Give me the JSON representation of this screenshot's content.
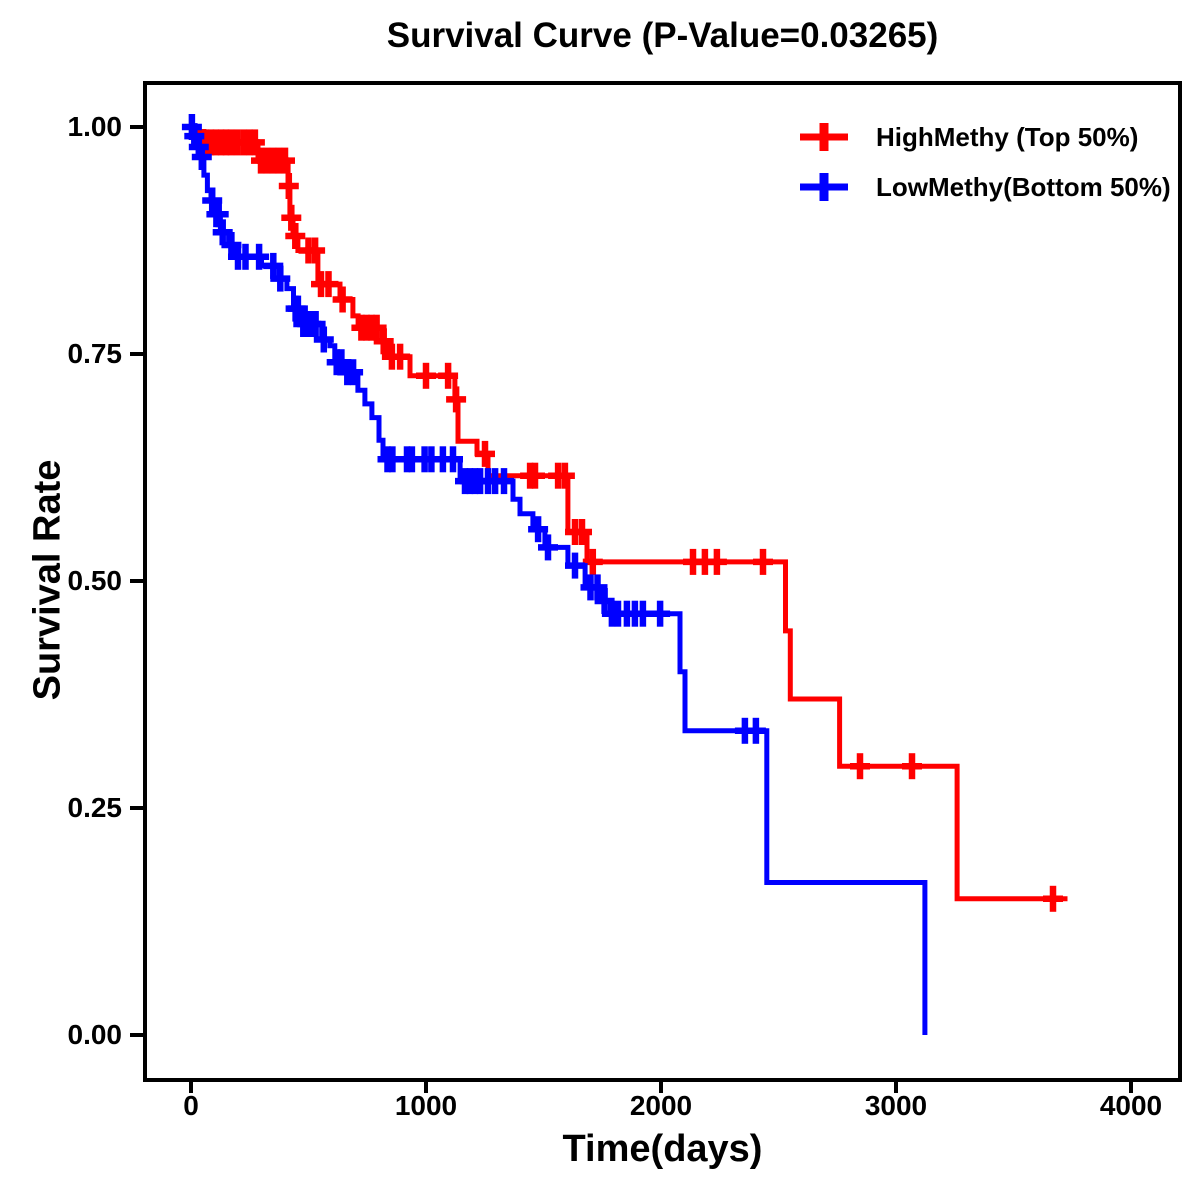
{
  "title": "Survival Curve (P-Value=0.03265)",
  "axes": {
    "x_label": "Time(days)",
    "y_label": "Survival Rate",
    "x_tick_labels": [
      "0",
      "1000",
      "2000",
      "3000",
      "4000"
    ],
    "y_tick_labels": [
      "1.00",
      "0.75",
      "0.50",
      "0.25",
      "0.00"
    ]
  },
  "legend": {
    "position": "top-right",
    "items": [
      {
        "label": "HighMethy (Top 50%)",
        "color": "#ff0000",
        "marker": "plus"
      },
      {
        "label": "LowMethy(Bottom 50%)",
        "color": "#0000ff",
        "marker": "plus"
      }
    ]
  },
  "chart_data": {
    "type": "line",
    "subtype": "kaplan-meier-step-curves-with-censor-marks",
    "title": "Survival Curve (P-Value=0.03265)",
    "p_value": 0.03265,
    "xlabel": "Time(days)",
    "ylabel": "Survival Rate",
    "xlim": [
      -200,
      4200
    ],
    "ylim": [
      -0.05,
      1.05
    ],
    "x_ticks": [
      0,
      1000,
      2000,
      3000,
      4000
    ],
    "y_ticks": [
      1.0,
      0.75,
      0.5,
      0.25,
      0.0
    ],
    "grid": false,
    "frame": true,
    "series": [
      {
        "name": "HighMethy (Top 50%)",
        "color": "#ff0000",
        "end_time": 3730,
        "steps": [
          [
            0,
            1.0
          ],
          [
            25,
            0.995
          ],
          [
            55,
            0.983
          ],
          [
            285,
            0.963
          ],
          [
            413,
            0.935
          ],
          [
            421,
            0.9
          ],
          [
            434,
            0.88
          ],
          [
            455,
            0.864
          ],
          [
            540,
            0.827
          ],
          [
            634,
            0.81
          ],
          [
            689,
            0.792
          ],
          [
            711,
            0.779
          ],
          [
            813,
            0.764
          ],
          [
            838,
            0.747
          ],
          [
            932,
            0.726
          ],
          [
            1123,
            0.7
          ],
          [
            1136,
            0.654
          ],
          [
            1217,
            0.64
          ],
          [
            1264,
            0.616
          ],
          [
            1604,
            0.554
          ],
          [
            1685,
            0.521
          ],
          [
            2530,
            0.445
          ],
          [
            2550,
            0.37
          ],
          [
            2760,
            0.296
          ],
          [
            3260,
            0.15
          ]
        ],
        "censors": [
          [
            64,
            0.983
          ],
          [
            85,
            0.983
          ],
          [
            106,
            0.983
          ],
          [
            128,
            0.983
          ],
          [
            149,
            0.983
          ],
          [
            170,
            0.983
          ],
          [
            196,
            0.983
          ],
          [
            223,
            0.983
          ],
          [
            249,
            0.983
          ],
          [
            272,
            0.983
          ],
          [
            298,
            0.963
          ],
          [
            323,
            0.963
          ],
          [
            349,
            0.963
          ],
          [
            374,
            0.963
          ],
          [
            400,
            0.963
          ],
          [
            416,
            0.935
          ],
          [
            427,
            0.9
          ],
          [
            444,
            0.88
          ],
          [
            500,
            0.864
          ],
          [
            528,
            0.864
          ],
          [
            553,
            0.827
          ],
          [
            585,
            0.827
          ],
          [
            645,
            0.81
          ],
          [
            725,
            0.779
          ],
          [
            747,
            0.779
          ],
          [
            768,
            0.779
          ],
          [
            790,
            0.779
          ],
          [
            820,
            0.764
          ],
          [
            855,
            0.747
          ],
          [
            890,
            0.747
          ],
          [
            1000,
            0.726
          ],
          [
            1094,
            0.726
          ],
          [
            1128,
            0.7
          ],
          [
            1251,
            0.64
          ],
          [
            1443,
            0.616
          ],
          [
            1464,
            0.616
          ],
          [
            1562,
            0.616
          ],
          [
            1591,
            0.616
          ],
          [
            1634,
            0.554
          ],
          [
            1664,
            0.554
          ],
          [
            1710,
            0.521
          ],
          [
            2136,
            0.521
          ],
          [
            2187,
            0.521
          ],
          [
            2238,
            0.521
          ],
          [
            2434,
            0.521
          ],
          [
            2847,
            0.296
          ],
          [
            3068,
            0.296
          ],
          [
            3668,
            0.15
          ]
        ]
      },
      {
        "name": "LowMethy(Bottom 50%)",
        "color": "#0000ff",
        "end_time": 3123,
        "steps": [
          [
            0,
            1.0
          ],
          [
            10,
            0.99
          ],
          [
            30,
            0.978
          ],
          [
            42,
            0.967
          ],
          [
            55,
            0.947
          ],
          [
            70,
            0.93
          ],
          [
            85,
            0.919
          ],
          [
            100,
            0.904
          ],
          [
            125,
            0.884
          ],
          [
            160,
            0.87
          ],
          [
            185,
            0.857
          ],
          [
            300,
            0.847
          ],
          [
            375,
            0.833
          ],
          [
            408,
            0.822
          ],
          [
            436,
            0.8
          ],
          [
            465,
            0.783
          ],
          [
            556,
            0.766
          ],
          [
            591,
            0.759
          ],
          [
            612,
            0.741
          ],
          [
            655,
            0.73
          ],
          [
            710,
            0.71
          ],
          [
            740,
            0.695
          ],
          [
            770,
            0.68
          ],
          [
            800,
            0.655
          ],
          [
            817,
            0.634
          ],
          [
            1145,
            0.61
          ],
          [
            1370,
            0.59
          ],
          [
            1400,
            0.574
          ],
          [
            1455,
            0.557
          ],
          [
            1506,
            0.537
          ],
          [
            1604,
            0.517
          ],
          [
            1677,
            0.493
          ],
          [
            1752,
            0.478
          ],
          [
            1785,
            0.464
          ],
          [
            2081,
            0.4
          ],
          [
            2102,
            0.335
          ],
          [
            2450,
            0.168
          ],
          [
            3123,
            0.0
          ]
        ],
        "censors": [
          [
            4,
            1.0
          ],
          [
            14,
            0.99
          ],
          [
            33,
            0.978
          ],
          [
            46,
            0.967
          ],
          [
            90,
            0.919
          ],
          [
            108,
            0.904
          ],
          [
            118,
            0.904
          ],
          [
            135,
            0.884
          ],
          [
            172,
            0.87
          ],
          [
            200,
            0.857
          ],
          [
            232,
            0.857
          ],
          [
            290,
            0.857
          ],
          [
            350,
            0.847
          ],
          [
            380,
            0.833
          ],
          [
            445,
            0.8
          ],
          [
            455,
            0.8
          ],
          [
            478,
            0.783
          ],
          [
            495,
            0.783
          ],
          [
            512,
            0.783
          ],
          [
            530,
            0.783
          ],
          [
            565,
            0.766
          ],
          [
            620,
            0.741
          ],
          [
            640,
            0.741
          ],
          [
            665,
            0.73
          ],
          [
            690,
            0.73
          ],
          [
            836,
            0.634
          ],
          [
            857,
            0.634
          ],
          [
            919,
            0.634
          ],
          [
            940,
            0.634
          ],
          [
            994,
            0.634
          ],
          [
            1023,
            0.634
          ],
          [
            1072,
            0.634
          ],
          [
            1115,
            0.634
          ],
          [
            1166,
            0.61
          ],
          [
            1187,
            0.61
          ],
          [
            1208,
            0.61
          ],
          [
            1230,
            0.61
          ],
          [
            1264,
            0.61
          ],
          [
            1294,
            0.61
          ],
          [
            1332,
            0.61
          ],
          [
            1477,
            0.557
          ],
          [
            1519,
            0.537
          ],
          [
            1634,
            0.517
          ],
          [
            1700,
            0.493
          ],
          [
            1730,
            0.493
          ],
          [
            1760,
            0.478
          ],
          [
            1791,
            0.464
          ],
          [
            1817,
            0.464
          ],
          [
            1855,
            0.464
          ],
          [
            1889,
            0.464
          ],
          [
            1923,
            0.464
          ],
          [
            1996,
            0.464
          ],
          [
            2357,
            0.335
          ],
          [
            2404,
            0.335
          ]
        ]
      }
    ]
  }
}
